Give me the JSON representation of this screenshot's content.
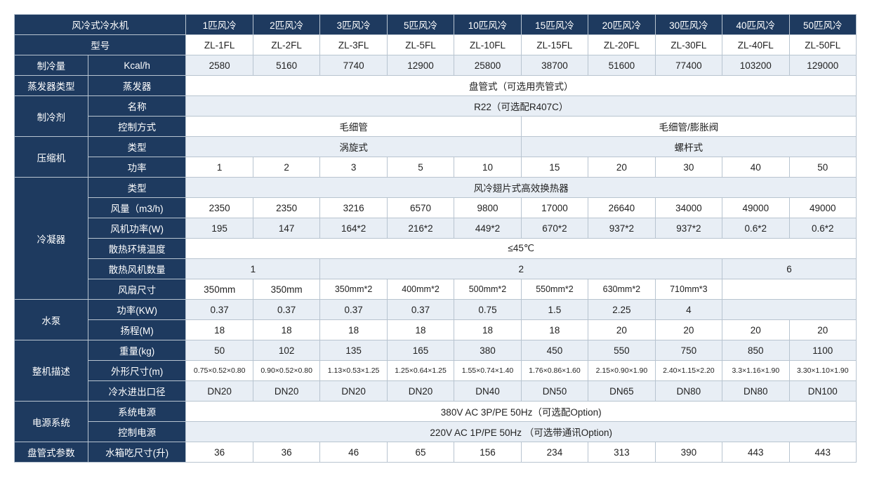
{
  "colors": {
    "header_bg": "#1e3a5f",
    "header_fg": "#ffffff",
    "shade_bg": "#e8eef5",
    "plain_bg": "#ffffff",
    "border": "#b8c4d0",
    "text": "#222222"
  },
  "header": {
    "title": "风冷式冷水机",
    "cols": [
      "1匹风冷",
      "2匹风冷",
      "3匹风冷",
      "5匹风冷",
      "10匹风冷",
      "15匹风冷",
      "20匹风冷",
      "30匹风冷",
      "40匹风冷",
      "50匹风冷"
    ]
  },
  "model": {
    "label": "型号",
    "vals": [
      "ZL-1FL",
      "ZL-2FL",
      "ZL-3FL",
      "ZL-5FL",
      "ZL-10FL",
      "ZL-15FL",
      "ZL-20FL",
      "ZL-30FL",
      "ZL-40FL",
      "ZL-50FL"
    ]
  },
  "cooling": {
    "label": "制冷量",
    "unit": "Kcal/h",
    "vals": [
      "2580",
      "5160",
      "7740",
      "12900",
      "25800",
      "38700",
      "51600",
      "77400",
      "103200",
      "129000"
    ]
  },
  "evap": {
    "label": "蒸发器类型",
    "sub": "蒸发器",
    "val": "盘管式（可选用壳管式）"
  },
  "refrigerant": {
    "label": "制冷剂",
    "name_label": "名称",
    "name_val": "R22（可选配R407C）",
    "ctrl_label": "控制方式",
    "ctrl_left": "毛细管",
    "ctrl_right": "毛细管/膨胀阀"
  },
  "compressor": {
    "label": "压缩机",
    "type_label": "类型",
    "type_left": "涡旋式",
    "type_right": "螺杆式",
    "power_label": "功率",
    "power_vals": [
      "1",
      "2",
      "3",
      "5",
      "10",
      "15",
      "20",
      "30",
      "40",
      "50"
    ]
  },
  "condenser": {
    "label": "冷凝器",
    "type_label": "类型",
    "type_val": "风冷翅片式高效换热器",
    "airflow_label": "风量（m3/h)",
    "airflow_vals": [
      "2350",
      "2350",
      "3216",
      "6570",
      "9800",
      "17000",
      "26640",
      "34000",
      "49000",
      "49000"
    ],
    "fanpower_label": "风机功率(W)",
    "fanpower_vals": [
      "195",
      "147",
      "164*2",
      "216*2",
      "449*2",
      "670*2",
      "937*2",
      "937*2",
      "0.6*2",
      "0.6*2"
    ],
    "ambient_label": "散热环境温度",
    "ambient_val": "≤45℃",
    "fancount_label": "散热风机数量",
    "fancount_1": "1",
    "fancount_2": "2",
    "fancount_6": "6",
    "fansize_label": "风扇尺寸",
    "fansize_vals": [
      "350mm",
      "350mm",
      "350mm*2",
      "400mm*2",
      "500mm*2",
      "550mm*2",
      "630mm*2",
      "710mm*3"
    ]
  },
  "pump": {
    "label": "水泵",
    "power_label": "功率(KW)",
    "power_vals": [
      "0.37",
      "0.37",
      "0.37",
      "0.37",
      "0.75",
      "1.5",
      "2.25",
      "4"
    ],
    "head_label": "扬程(M)",
    "head_vals": [
      "18",
      "18",
      "18",
      "18",
      "18",
      "18",
      "20",
      "20",
      "20",
      "20"
    ]
  },
  "machine": {
    "label": "整机描述",
    "weight_label": "重量(kg)",
    "weight_vals": [
      "50",
      "102",
      "135",
      "165",
      "380",
      "450",
      "550",
      "750",
      "850",
      "1100"
    ],
    "dim_label": "外形尺寸(m)",
    "dim_vals": [
      "0.75×0.52×0.80",
      "0.90×0.52×0.80",
      "1.13×0.53×1.25",
      "1.25×0.64×1.25",
      "1.55×0.74×1.40",
      "1.76×0.86×1.60",
      "2.15×0.90×1.90",
      "2.40×1.15×2.20",
      "3.3×1.16×1.90",
      "3.30×1.10×1.90"
    ],
    "port_label": "冷水进出口径",
    "port_vals": [
      "DN20",
      "DN20",
      "DN20",
      "DN20",
      "DN40",
      "DN50",
      "DN65",
      "DN80",
      "DN80",
      "DN100"
    ]
  },
  "power": {
    "label": "电源系统",
    "sys_label": "系统电源",
    "sys_val": "380V AC 3P/PE 50Hz（可选配Option)",
    "ctrl_label": "控制电源",
    "ctrl_val": "220V AC 1P/PE 50Hz  （可选带通讯Option)"
  },
  "coil": {
    "label": "盘管式参数",
    "tanklabel": "水箱吃尺寸(升)",
    "vals": [
      "36",
      "36",
      "46",
      "65",
      "156",
      "234",
      "313",
      "390",
      "443",
      "443"
    ]
  }
}
